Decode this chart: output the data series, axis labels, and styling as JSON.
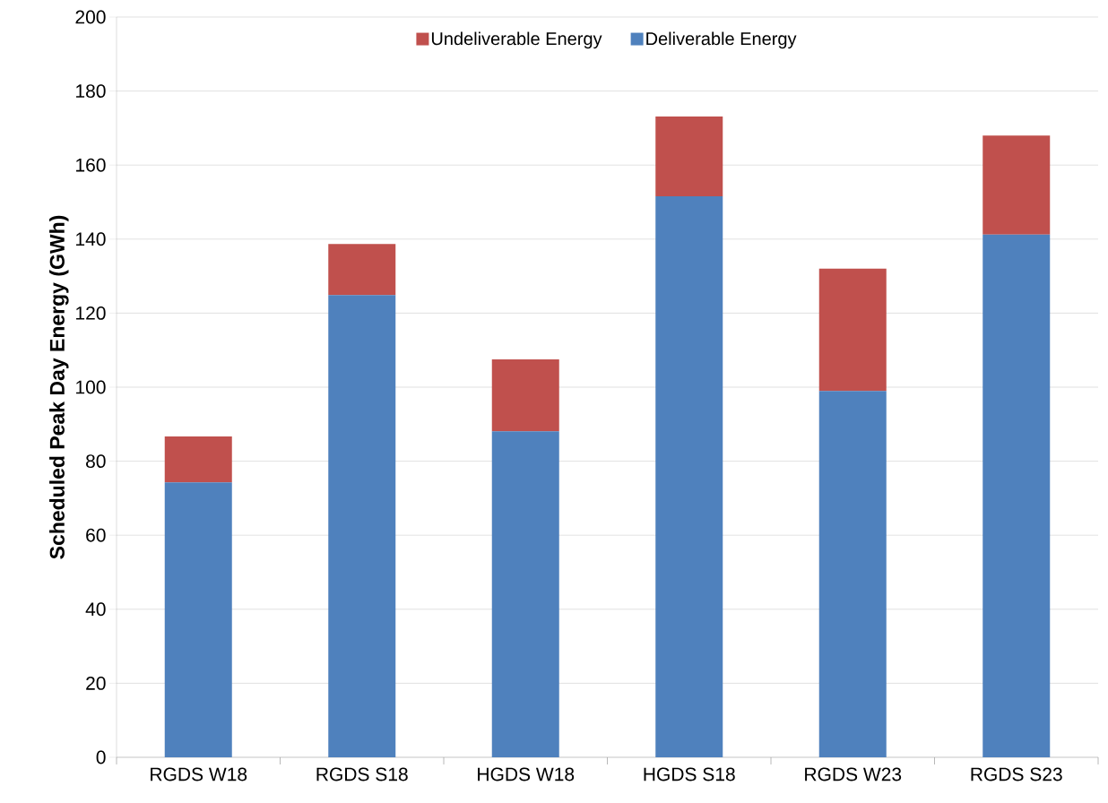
{
  "chart_data": {
    "type": "bar",
    "stacked": true,
    "ylabel": "Scheduled Peak Day Energy (GWh)",
    "categories": [
      "RGDS W18",
      "RGDS S18",
      "HGDS W18",
      "HGDS S18",
      "RGDS W23",
      "RGDS S23"
    ],
    "series": [
      {
        "name": "Deliverable Energy",
        "color": "#4f81bd",
        "values": [
          74.3,
          124.9,
          88.1,
          151.6,
          99.0,
          141.2
        ]
      },
      {
        "name": "Undeliverable Energy",
        "color": "#c0504d",
        "values": [
          12.4,
          13.8,
          19.4,
          21.5,
          33.0,
          26.8
        ]
      }
    ],
    "ylim": [
      0,
      200
    ],
    "yticks": [
      0,
      20,
      40,
      60,
      80,
      100,
      120,
      140,
      160,
      180,
      200
    ],
    "grid": "y",
    "legend": "top"
  }
}
